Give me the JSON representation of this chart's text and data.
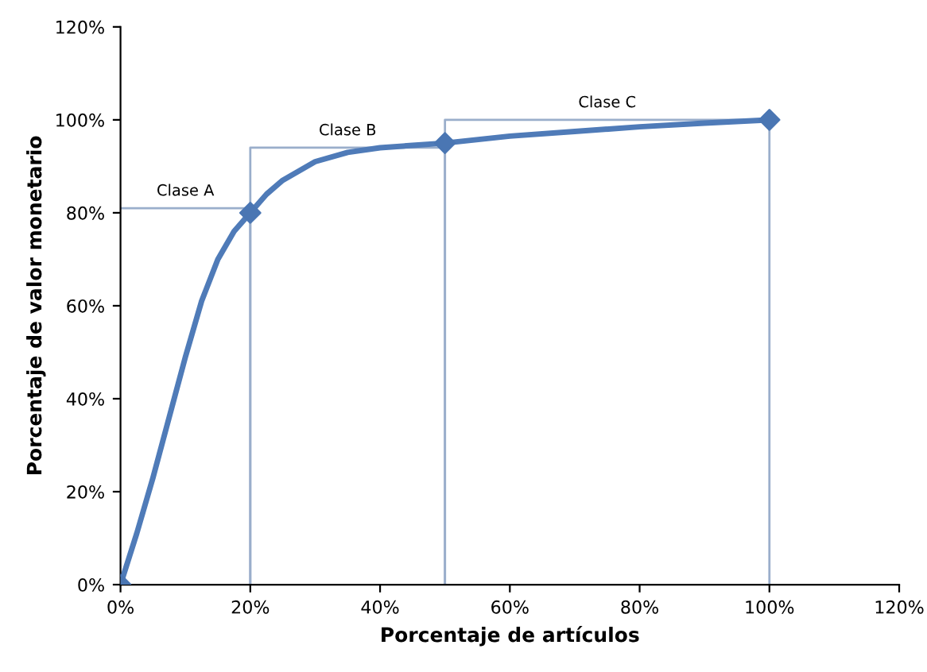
{
  "chart_data": {
    "type": "line",
    "xlabel": "Porcentaje de artículos",
    "ylabel": "Porcentaje de valor monetario",
    "series": [
      {
        "color": "#9aaecb",
        "x": [
          0,
          20,
          20
        ],
        "values": [
          81,
          81,
          0
        ]
      },
      {
        "color": "#9aaecb",
        "x": [
          20,
          20,
          50,
          50
        ],
        "values": [
          0,
          94,
          94,
          0
        ]
      },
      {
        "color": "#9aaecb",
        "x": [
          50,
          50,
          100,
          100
        ],
        "values": [
          0,
          100,
          100,
          0
        ]
      },
      {
        "color": "#4f7bb8",
        "x": [
          0,
          2.5,
          5,
          7.5,
          10,
          12.5,
          15,
          17.5,
          20,
          22.5,
          25,
          30,
          35,
          40,
          45,
          50,
          60,
          70,
          80,
          90,
          100
        ],
        "values": [
          0,
          11,
          23,
          36,
          49,
          61,
          70,
          76,
          80,
          84,
          87,
          91,
          93,
          94,
          94.5,
          95,
          96.5,
          97.5,
          98.5,
          99.3,
          100
        ]
      },
      {
        "type": "scatter",
        "marker": "diamond",
        "color": "#4a76b3",
        "x": [
          0,
          20,
          50,
          100
        ],
        "values": [
          0,
          80,
          95,
          100
        ]
      }
    ],
    "line_style": "solid",
    "grid": false,
    "legend": false,
    "xlim": [
      0,
      120
    ],
    "ylim": [
      0,
      120
    ],
    "xticks": [
      {
        "value": 0,
        "label": "0%"
      },
      {
        "value": 20,
        "label": "20%"
      },
      {
        "value": 40,
        "label": "40%"
      },
      {
        "value": 60,
        "label": "60%"
      },
      {
        "value": 80,
        "label": "80%"
      },
      {
        "value": 100,
        "label": "100%"
      },
      {
        "value": 120,
        "label": "120%"
      }
    ],
    "yticks": [
      {
        "value": 0,
        "label": "0%"
      },
      {
        "value": 20,
        "label": "20%"
      },
      {
        "value": 40,
        "label": "40%"
      },
      {
        "value": 60,
        "label": "60%"
      },
      {
        "value": 80,
        "label": "80%"
      },
      {
        "value": 100,
        "label": "100%"
      },
      {
        "value": 120,
        "label": "120%"
      }
    ],
    "annotations": [
      "Clase A",
      "Clase B",
      "Clase C"
    ]
  }
}
